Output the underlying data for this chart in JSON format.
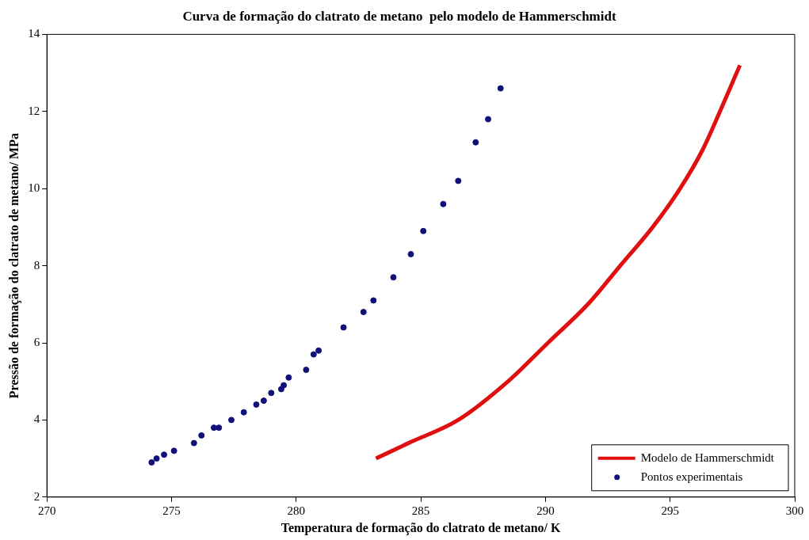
{
  "chart_data": {
    "type": "scatter",
    "title": "Curva de formação do clatrato de metano  pelo modelo de Hammerschmidt",
    "xlabel": "Temperatura de formação do clatrato de metano/ K",
    "ylabel": "Pressão de formação do clatrato de metano/ MPa",
    "xlim": [
      270,
      300
    ],
    "xticks": [
      270,
      275,
      280,
      285,
      290,
      295,
      300
    ],
    "ylim": [
      2,
      14
    ],
    "yticks": [
      2,
      4,
      6,
      8,
      10,
      12,
      14
    ],
    "grid": false,
    "legend": "bottom right",
    "marker": "circle",
    "series": [
      {
        "name": "Modelo de Hammerschmidt",
        "type": "line",
        "marker": "none",
        "color": "#e01010",
        "x": [
          283.2,
          284.5,
          286.5,
          288.5,
          290.1,
          291.7,
          293.0,
          294.3,
          295.4,
          296.3,
          297.0,
          297.8
        ],
        "values": [
          3.0,
          3.4,
          4.0,
          5.0,
          6.0,
          7.0,
          8.0,
          9.0,
          10.0,
          11.0,
          12.0,
          13.2
        ]
      },
      {
        "name": "Pontos experimentais",
        "color": "#10107a",
        "x": [
          274.2,
          274.4,
          274.7,
          275.1,
          275.9,
          276.2,
          276.7,
          276.9,
          277.4,
          277.9,
          278.4,
          278.7,
          279.0,
          279.4,
          279.5,
          279.7,
          280.4,
          280.7,
          280.9,
          281.9,
          282.7,
          283.1,
          283.9,
          284.6,
          285.1,
          285.9,
          286.5,
          287.2,
          287.7,
          288.2
        ],
        "values": [
          2.9,
          3.0,
          3.1,
          3.2,
          3.4,
          3.6,
          3.8,
          3.8,
          4.0,
          4.2,
          4.4,
          4.5,
          4.7,
          4.8,
          4.9,
          5.1,
          5.3,
          5.7,
          5.8,
          6.4,
          6.8,
          7.1,
          7.7,
          8.3,
          8.9,
          9.6,
          10.2,
          11.2,
          11.8,
          12.6
        ]
      }
    ]
  }
}
